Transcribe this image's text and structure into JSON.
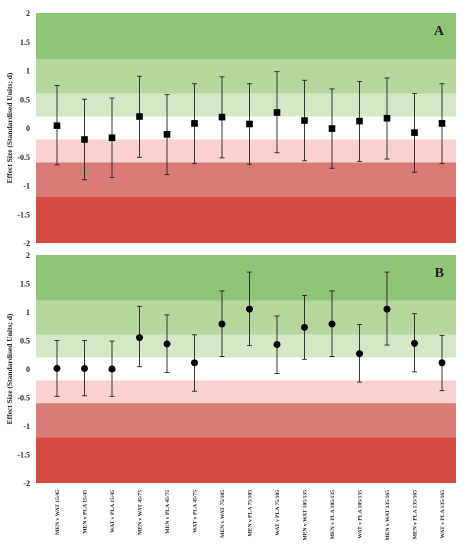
{
  "chart_data": [
    {
      "type": "scatter",
      "panel_label": "A",
      "marker": "square",
      "ylabel": "Effect Size (Standardised Units; d)",
      "ylim": [
        -2,
        2
      ],
      "yticks": [
        "2",
        "1.5",
        "1",
        "0.5",
        "0",
        "-0.5",
        "-1",
        "-1.5",
        "-2"
      ],
      "x_tick_labels_visible": false,
      "categories": [
        "MEN v WAT 15/45",
        "MEN v PLA 15/45",
        "WAT v PLA 15/45",
        "MEN v WAT 45/75",
        "MEN v PLA 45/75",
        "WAT v PLA 45/75",
        "MEN v WAT 75/105",
        "MEN v PLA 75/105",
        "WAT v PLA 75/105",
        "MEN v WAT 105/135",
        "MEN v PLA 105/135",
        "WAT v PLA 105/135",
        "MEN v WAT 135/165",
        "MEN v PLA 135/165",
        "WAT v PLA 135/165"
      ],
      "values": [
        0.04,
        -0.2,
        -0.17,
        0.2,
        -0.11,
        0.08,
        0.19,
        0.07,
        0.27,
        0.13,
        -0.01,
        0.12,
        0.17,
        -0.08,
        0.08
      ],
      "error_low": [
        -0.64,
        -0.9,
        -0.86,
        -0.51,
        -0.81,
        -0.62,
        -0.52,
        -0.63,
        -0.43,
        -0.57,
        -0.7,
        -0.58,
        -0.54,
        -0.77,
        -0.62
      ],
      "error_high": [
        0.74,
        0.5,
        0.52,
        0.9,
        0.58,
        0.77,
        0.89,
        0.77,
        0.98,
        0.83,
        0.68,
        0.81,
        0.87,
        0.6,
        0.77
      ]
    },
    {
      "type": "scatter",
      "panel_label": "B",
      "marker": "circle",
      "ylabel": "Effect Size (Standardised Units; d)",
      "ylim": [
        -2,
        2
      ],
      "yticks": [
        "2",
        "1.5",
        "1",
        "0.5",
        "0",
        "-0.5",
        "-1",
        "-1.5",
        "-2"
      ],
      "x_tick_labels_visible": true,
      "categories": [
        "MEN v WAT 15/45",
        "MEN v PLA 15/45",
        "WAT v PLA 15/45",
        "MEN v WAT 45/75",
        "MEN v PLA 45/75",
        "WAT v PLA 45/75",
        "MEN v WAT 75/105",
        "MEN v PLA 75/105",
        "WAT v PLA 75/105",
        "MEN v WAT 105/135",
        "MEN v PLA 105/135",
        "WAT v PLA 105/135",
        "MEN v WAT 135/165",
        "MEN v PLA 135/165",
        "WAT v PLA 135/165"
      ],
      "values": [
        0.01,
        0.01,
        0.0,
        0.55,
        0.44,
        0.11,
        0.79,
        1.05,
        0.43,
        0.73,
        0.79,
        0.27,
        1.05,
        0.45,
        0.11
      ],
      "error_low": [
        -0.48,
        -0.47,
        -0.48,
        0.04,
        -0.06,
        -0.39,
        0.22,
        0.41,
        -0.08,
        0.17,
        0.22,
        -0.23,
        0.42,
        -0.05,
        -0.38
      ],
      "error_high": [
        0.5,
        0.5,
        0.49,
        1.1,
        0.95,
        0.6,
        1.37,
        1.7,
        0.93,
        1.29,
        1.37,
        0.78,
        1.7,
        0.97,
        0.59
      ]
    }
  ],
  "bands": [
    {
      "from": 1.2,
      "to": 2.0,
      "color": "#8fc576"
    },
    {
      "from": 0.6,
      "to": 1.2,
      "color": "#b5d79e"
    },
    {
      "from": 0.2,
      "to": 0.6,
      "color": "#d4e8c5"
    },
    {
      "from": -0.2,
      "to": 0.2,
      "color": "#ffffff"
    },
    {
      "from": -0.6,
      "to": -0.2,
      "color": "#fad1d0"
    },
    {
      "from": -1.2,
      "to": -0.6,
      "color": "#d87a76"
    },
    {
      "from": -2.0,
      "to": -1.2,
      "color": "#d64a40"
    }
  ]
}
